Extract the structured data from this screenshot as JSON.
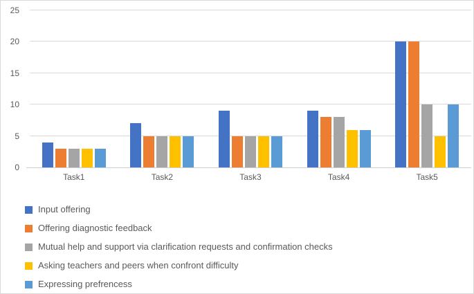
{
  "figure": {
    "background": "#ffffff",
    "border_color": "#d9d9d9"
  },
  "chart_data": {
    "type": "bar",
    "title": "",
    "xlabel": "",
    "ylabel": "",
    "categories": [
      "Task1",
      "Task2",
      "Task3",
      "Task4",
      "Task5"
    ],
    "series": [
      {
        "name": "Input offering",
        "color": "#4472C4",
        "values": [
          4,
          7,
          9,
          9,
          20
        ]
      },
      {
        "name": "Offering diagnostic feedback",
        "color": "#ED7D31",
        "values": [
          3,
          5,
          5,
          8,
          20
        ]
      },
      {
        "name": "Mutual help and support via clarification requests and confirmation checks",
        "color": "#A5A5A5",
        "values": [
          3,
          5,
          5,
          8,
          10
        ]
      },
      {
        "name": "Asking teachers and peers when confront difficulty",
        "color": "#FFC000",
        "values": [
          3,
          5,
          5,
          6,
          5
        ]
      },
      {
        "name": "Expressing prefrencess",
        "color": "#5B9BD5",
        "values": [
          3,
          5,
          5,
          6,
          10
        ]
      }
    ],
    "ylim": [
      0,
      25
    ],
    "yticks": [
      0,
      5,
      10,
      15,
      20,
      25
    ],
    "grid": true,
    "gridline_color": "#d9d9d9",
    "axis_text_color": "#595959",
    "legend_position": "bottom-left"
  }
}
